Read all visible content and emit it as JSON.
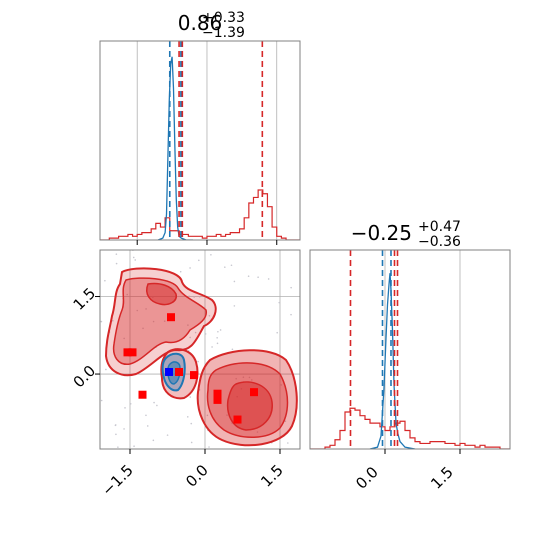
{
  "chart_data": {
    "type": "corner",
    "colors": {
      "red": "#d62728",
      "blue": "#1f77b4",
      "grid": "#b0b0b0",
      "axes": "#808080"
    },
    "panels": [
      {
        "id": "hist-param-1",
        "type": "histogram",
        "title_value": "0.86",
        "title_plus": "+0.33",
        "title_minus": "−1.39",
        "xlim": [
          -2.3,
          2.0
        ],
        "x_ticks": [
          -1.5,
          0.0,
          1.5
        ],
        "show_tick_labels": false,
        "red_quantile_lines": [
          -0.53,
          -0.6,
          1.19
        ],
        "blue_quantile_lines": [
          -0.8,
          -0.56
        ],
        "red_hist": {
          "edges_start": -2.3,
          "bin_width": 0.1,
          "heights": [
            0,
            0,
            0.01,
            0.01,
            0.02,
            0.02,
            0.03,
            0.02,
            0.03,
            0.04,
            0.04,
            0.06,
            0.09,
            0.07,
            0.12,
            0.05,
            0.05,
            0.03,
            0.03,
            0.02,
            0.02,
            0.02,
            0.01,
            0.02,
            0.02,
            0.03,
            0.02,
            0.03,
            0.04,
            0.04,
            0.06,
            0.12,
            0.2,
            0.23,
            0.27,
            0.25,
            0.18,
            0.07,
            0.02,
            0.01,
            0,
            0,
            0
          ]
        },
        "blue_curve": {
          "x": [
            -1.05,
            -0.95,
            -0.9,
            -0.87,
            -0.84,
            -0.81,
            -0.78,
            -0.75,
            -0.72,
            -0.69,
            -0.66,
            -0.63,
            -0.6,
            -0.55,
            -0.45,
            -0.3
          ],
          "y": [
            0,
            0.01,
            0.04,
            0.14,
            0.45,
            0.76,
            0.95,
            0.99,
            0.82,
            0.5,
            0.22,
            0.07,
            0.02,
            0.01,
            0,
            0
          ]
        }
      },
      {
        "id": "hist-param-2",
        "type": "histogram",
        "title_value": "−0.25",
        "title_plus": "+0.47",
        "title_minus": "−0.36",
        "xlim": [
          -1.5,
          2.5
        ],
        "x_ticks": [
          0.0,
          1.5
        ],
        "x_tick_labels": [
          "0.0",
          "1.5"
        ],
        "red_quantile_lines": [
          -0.69,
          0.19,
          0.25
        ],
        "blue_quantile_lines": [
          -0.05,
          0.12
        ],
        "red_hist": {
          "edges_start": -1.5,
          "bin_width": 0.1,
          "heights": [
            0,
            0,
            0,
            0.01,
            0.02,
            0.05,
            0.1,
            0.2,
            0.22,
            0.21,
            0.18,
            0.16,
            0.14,
            0.14,
            0.12,
            0.1,
            0.12,
            0.14,
            0.15,
            0.1,
            0.06,
            0.04,
            0.03,
            0.03,
            0.04,
            0.04,
            0.04,
            0.03,
            0.03,
            0.02,
            0.03,
            0.02,
            0.02,
            0.01,
            0.02,
            0.01,
            0.01,
            0.01,
            0,
            0
          ]
        },
        "blue_curve": {
          "x": [
            -0.3,
            -0.15,
            -0.08,
            -0.02,
            0.02,
            0.05,
            0.08,
            0.1,
            0.12,
            0.15,
            0.18,
            0.22,
            0.26,
            0.3,
            0.4,
            0.6
          ],
          "y": [
            0,
            0.01,
            0.07,
            0.33,
            0.6,
            0.78,
            0.89,
            0.95,
            0.86,
            0.64,
            0.35,
            0.14,
            0.08,
            0.04,
            0.01,
            0
          ]
        }
      },
      {
        "id": "joint-2d",
        "type": "contour",
        "xlim": [
          -2.1,
          1.9
        ],
        "ylim": [
          -1.45,
          2.4
        ],
        "x_ticks": [
          -1.5,
          0.0,
          1.5
        ],
        "x_tick_labels": [
          "−1.5",
          "0.0",
          "1.5"
        ],
        "y_ticks": [
          0.0,
          1.5
        ],
        "y_tick_labels": [
          "0.0",
          "1.5"
        ],
        "red_points": [
          [
            -0.68,
            1.1
          ],
          [
            -1.45,
            0.42
          ],
          [
            -1.55,
            0.42
          ],
          [
            -1.25,
            -0.4
          ],
          [
            -0.52,
            0.04
          ],
          [
            -0.22,
            -0.02
          ],
          [
            0.25,
            -0.38
          ],
          [
            0.25,
            -0.5
          ],
          [
            0.65,
            -0.88
          ],
          [
            0.98,
            -0.35
          ]
        ],
        "blue_points": [
          [
            -0.72,
            0.04
          ]
        ]
      }
    ]
  }
}
